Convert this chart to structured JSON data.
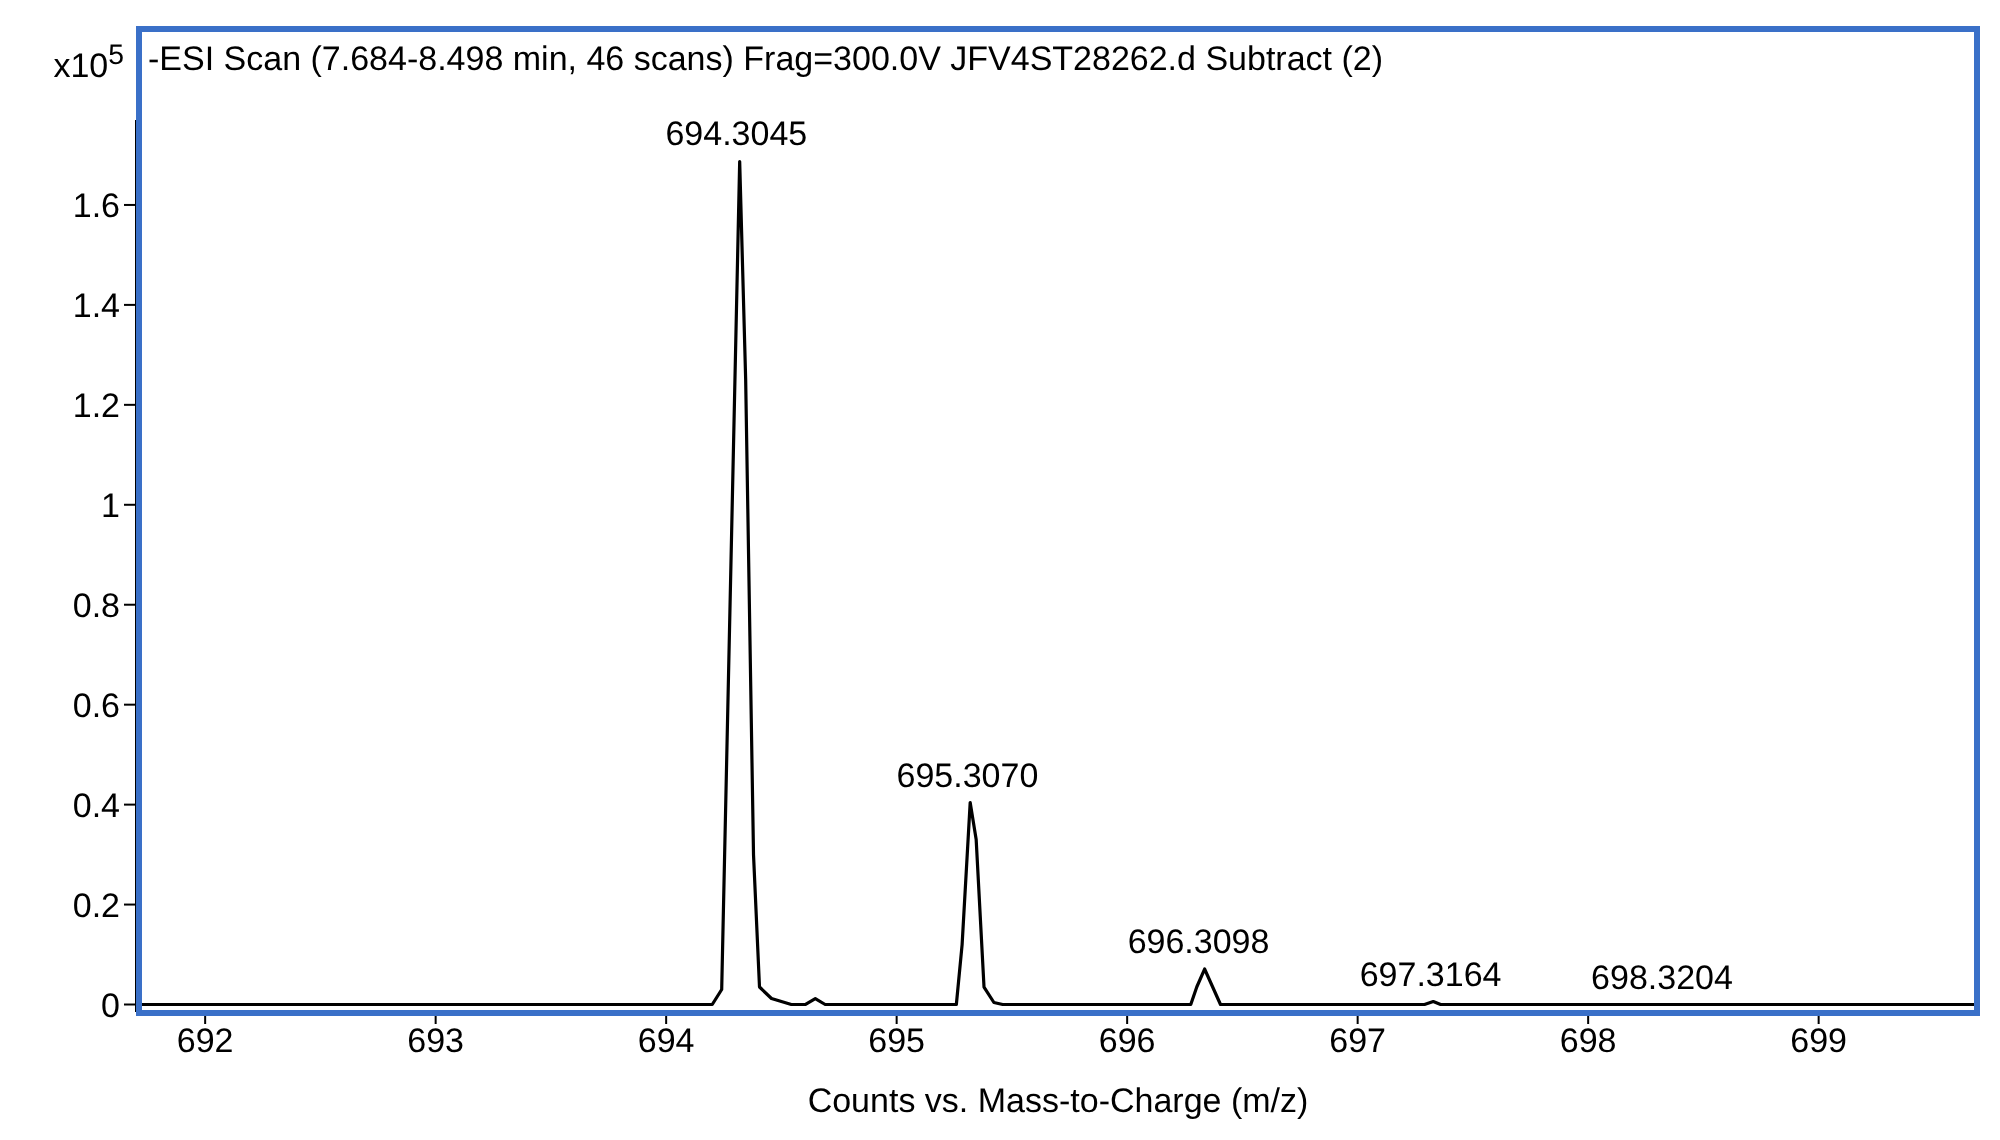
{
  "chart_data": {
    "type": "line",
    "title": "-ESI Scan (7.684-8.498 min, 46 scans) Frag=300.0V JFV4ST28262.d  Subtract (2)",
    "xlabel": "Counts vs. Mass-to-Charge (m/z)",
    "ylabel": "x10$^{5}$",
    "x": [
      691.7,
      694.2,
      694.241,
      694.319,
      694.345,
      694.379,
      694.405,
      694.457,
      694.543,
      694.603,
      694.647,
      694.69,
      695.259,
      695.284,
      695.319,
      695.345,
      695.379,
      695.422,
      695.46,
      696.276,
      696.302,
      696.336,
      696.371,
      696.405,
      697.29,
      697.328,
      697.36,
      699.7
    ],
    "series": [
      {
        "color": "#000000",
        "values": [
          0,
          0,
          0.03,
          1.687,
          1.25,
          0.3,
          0.035,
          0.012,
          0,
          0,
          0.012,
          0,
          0,
          0.12,
          0.404,
          0.33,
          0.035,
          0.004,
          0,
          0,
          0.035,
          0.071,
          0.035,
          0,
          0,
          0.006,
          0,
          0
        ]
      }
    ],
    "xlim": [
      691.7,
      699.7
    ],
    "ylim": [
      -0.015,
      1.77
    ],
    "xticks": [
      692,
      693,
      694,
      695,
      696,
      697,
      698,
      699
    ],
    "yticks": [
      0,
      0.2,
      0.4,
      0.6,
      0.8,
      1,
      1.2,
      1.4,
      1.6
    ],
    "annotations": [
      {
        "text": "694.3045",
        "x": 694.3045,
        "y": 1.687
      },
      {
        "text": "695.3070",
        "x": 695.307,
        "y": 0.404
      },
      {
        "text": "696.3098",
        "x": 696.3098,
        "y": 0.071
      },
      {
        "text": "697.3164",
        "x": 697.3164,
        "y": 0.006
      },
      {
        "text": "698.3204",
        "x": 698.3204,
        "y": 0
      }
    ]
  }
}
